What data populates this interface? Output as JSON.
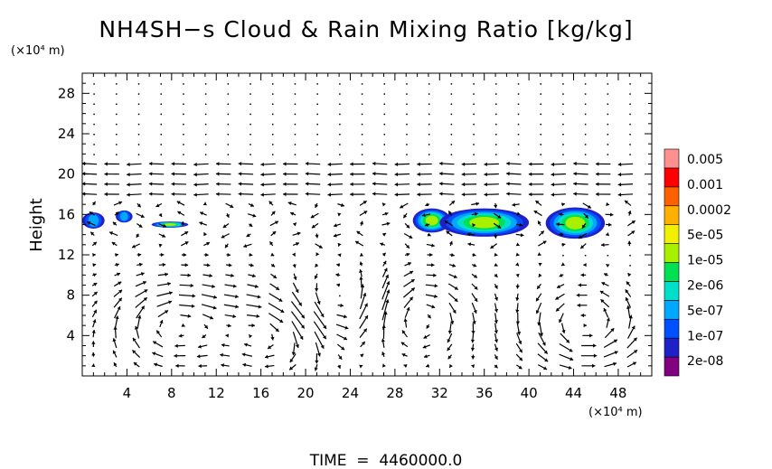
{
  "chart_data": {
    "type": "heatmap",
    "title": "NH4SH−s Cloud & Rain Mixing Ratio [kg/kg]",
    "ylabel": "Height",
    "x_unit": "(×10⁴ m)",
    "y_unit": "(×10⁴ m)",
    "footer": "TIME  =  4460000.0",
    "xlim": [
      0,
      51
    ],
    "ylim": [
      0,
      30
    ],
    "x_ticks": [
      4,
      8,
      12,
      16,
      20,
      24,
      28,
      32,
      36,
      40,
      44,
      48
    ],
    "y_ticks": [
      4,
      8,
      12,
      16,
      20,
      24,
      28
    ],
    "colorbar": {
      "labels": [
        "0.005",
        "0.001",
        "0.0002",
        "5e-05",
        "1e-05",
        "2e-06",
        "5e-07",
        "1e-07",
        "2e-08"
      ],
      "colors": [
        "#800080",
        "#2020c8",
        "#0050ff",
        "#00a8ff",
        "#00e0c8",
        "#00e050",
        "#a8f000",
        "#f0f000",
        "#ffb000",
        "#ff6000",
        "#ff0000",
        "#ff9090"
      ]
    },
    "cloud_regions": [
      {
        "x": [
          0.0,
          2.0
        ],
        "y": [
          14.6,
          16.2
        ]
      },
      {
        "x": [
          3.0,
          4.5
        ],
        "y": [
          15.2,
          16.4
        ]
      },
      {
        "x": [
          6.2,
          9.5
        ],
        "y": [
          14.7,
          15.3
        ]
      },
      {
        "x": [
          29.6,
          33.0
        ],
        "y": [
          14.2,
          16.6
        ]
      },
      {
        "x": [
          32.0,
          40.0
        ],
        "y": [
          13.8,
          16.6
        ]
      },
      {
        "x": [
          41.5,
          46.8
        ],
        "y": [
          13.6,
          16.7
        ]
      }
    ],
    "wind_field": "quiver vectors"
  }
}
